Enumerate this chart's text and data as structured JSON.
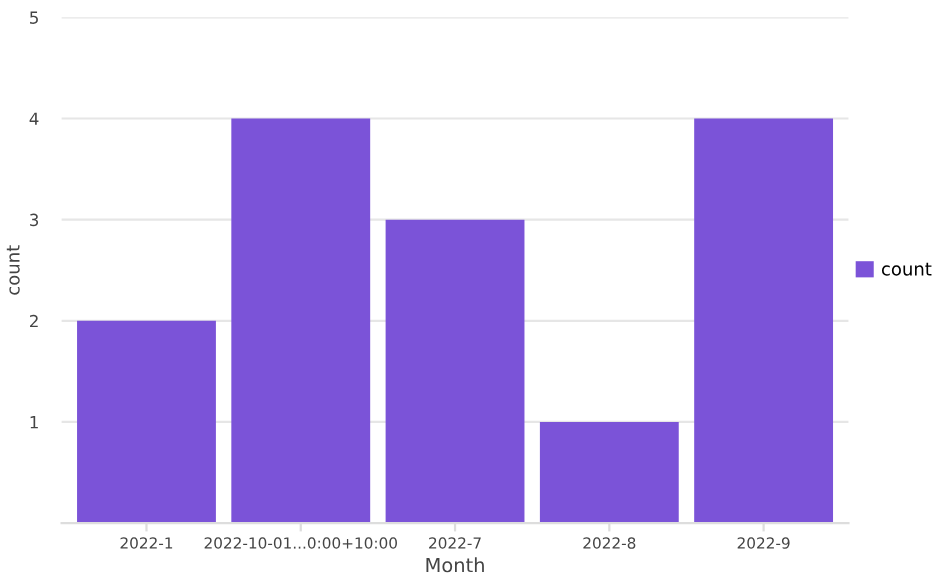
{
  "chart_data": {
    "type": "bar",
    "xlabel": "Month",
    "ylabel": "count",
    "categories": [
      "2022-1",
      "2022-10-01...0:00+10:00",
      "2022-7",
      "2022-8",
      "2022-9"
    ],
    "series": [
      {
        "name": "count",
        "color": "#7b53d8",
        "values": [
          2,
          4,
          3,
          1,
          4
        ]
      }
    ],
    "ylim": [
      0,
      5
    ],
    "yticks": [
      1,
      2,
      3,
      4,
      5
    ],
    "grid": "y",
    "legend": "right"
  }
}
